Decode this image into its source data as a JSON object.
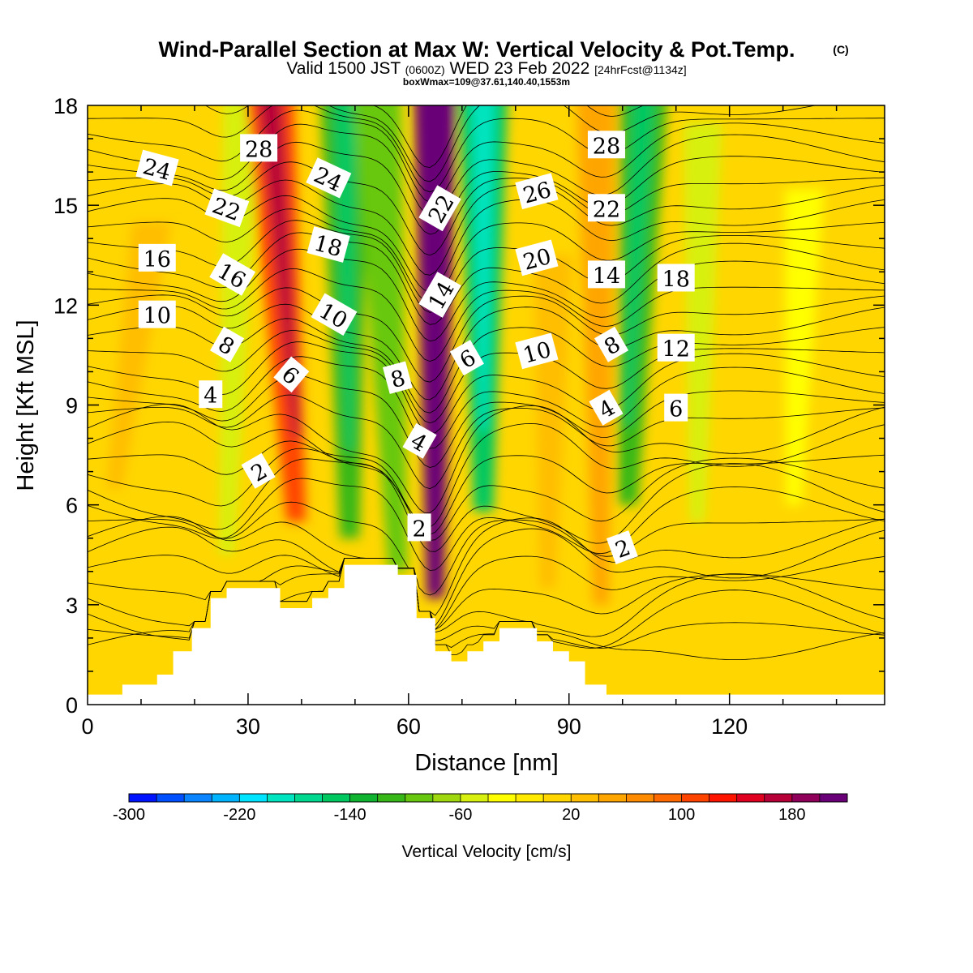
{
  "chart_data": {
    "type": "heatmap",
    "title": "Wind-Parallel Section at Max W: Vertical Velocity & Pot.Temp.",
    "title_mark": "(C)",
    "subtitle_parts": [
      "Valid 1500 JST ",
      "(0600Z)",
      " WED 23 Feb 2022 ",
      "[24hrFcst@1134z]"
    ],
    "subtitle2": "boxWmax=109@37.61,140.40,1553m",
    "xlabel": "Distance [nm]",
    "ylabel": "Height [Kft MSL]",
    "xlim": [
      0,
      149
    ],
    "ylim": [
      0,
      18
    ],
    "x_ticks": [
      0,
      30,
      60,
      90,
      120
    ],
    "y_ticks": [
      0,
      3,
      6,
      9,
      12,
      15,
      18
    ],
    "colorbar": {
      "title": "Vertical Velocity [cm/s]",
      "min": -300,
      "max": 220,
      "step": 20,
      "tick_labels": [
        -300,
        -220,
        -140,
        -60,
        20,
        100,
        180
      ],
      "colors": [
        "#0014ff",
        "#0050ff",
        "#0a84ff",
        "#00b4ff",
        "#00e4ff",
        "#00e4c0",
        "#00d890",
        "#00c860",
        "#10b430",
        "#38b818",
        "#68c810",
        "#a0d810",
        "#d8f010",
        "#ffff00",
        "#ffea00",
        "#ffd600",
        "#ffbe00",
        "#ffa500",
        "#ff8c00",
        "#ff6a00",
        "#ff4400",
        "#ff1400",
        "#e00020",
        "#b80038",
        "#90005a",
        "#6a0078"
      ]
    },
    "vertical_velocity_bands": [
      {
        "x_top": 12,
        "x_bottom": 5,
        "y_from": 6.5,
        "y_to": 14,
        "value": 30
      },
      {
        "x_top": 29,
        "x_bottom": 26,
        "y_from": 4.5,
        "y_to": 18,
        "value": -50
      },
      {
        "x_top": 34,
        "x_bottom": 39,
        "y_from": 5.5,
        "y_to": 18,
        "value": 100
      },
      {
        "x_top": 48,
        "x_bottom": 49,
        "y_from": 5,
        "y_to": 18,
        "value": -120
      },
      {
        "x_top": 54,
        "x_bottom": 58,
        "y_from": 4,
        "y_to": 18,
        "value": -90
      },
      {
        "x_top": 65,
        "x_bottom": 65,
        "y_from": 3.2,
        "y_to": 18,
        "value": 200
      },
      {
        "x_top": 74,
        "x_bottom": 74,
        "y_from": 5.8,
        "y_to": 18,
        "value": -150
      },
      {
        "x_top": 87,
        "x_bottom": 86,
        "y_from": 3.5,
        "y_to": 13,
        "value": 30
      },
      {
        "x_top": 95,
        "x_bottom": 96,
        "y_from": 3,
        "y_to": 18,
        "value": 50
      },
      {
        "x_top": 104,
        "x_bottom": 101,
        "y_from": 6,
        "y_to": 18,
        "value": -120
      },
      {
        "x_top": 115,
        "x_bottom": 114,
        "y_from": 5.5,
        "y_to": 17,
        "value": -50
      },
      {
        "x_top": 134,
        "x_bottom": 132,
        "y_from": 6,
        "y_to": 15,
        "value": -40
      }
    ],
    "terrain": [
      [
        0,
        0.3
      ],
      [
        6.5,
        0.3
      ],
      [
        6.5,
        0.6
      ],
      [
        13,
        0.6
      ],
      [
        13,
        0.9
      ],
      [
        16,
        0.9
      ],
      [
        16,
        1.6
      ],
      [
        19.5,
        1.6
      ],
      [
        19.5,
        2.3
      ],
      [
        23,
        2.3
      ],
      [
        23,
        3.2
      ],
      [
        26,
        3.2
      ],
      [
        26,
        3.5
      ],
      [
        36,
        3.5
      ],
      [
        36,
        2.9
      ],
      [
        42,
        2.9
      ],
      [
        42,
        3.2
      ],
      [
        45,
        3.2
      ],
      [
        45,
        3.5
      ],
      [
        48,
        3.5
      ],
      [
        48,
        4.2
      ],
      [
        58,
        4.2
      ],
      [
        58,
        3.9
      ],
      [
        61.5,
        3.9
      ],
      [
        61.5,
        2.6
      ],
      [
        65,
        2.6
      ],
      [
        65,
        1.6
      ],
      [
        68,
        1.6
      ],
      [
        68,
        1.3
      ],
      [
        71,
        1.3
      ],
      [
        71,
        1.6
      ],
      [
        74,
        1.6
      ],
      [
        74,
        1.9
      ],
      [
        77,
        1.9
      ],
      [
        77,
        2.3
      ],
      [
        84,
        2.3
      ],
      [
        84,
        1.9
      ],
      [
        87,
        1.9
      ],
      [
        87,
        1.6
      ],
      [
        90,
        1.6
      ],
      [
        90,
        1.3
      ],
      [
        93,
        1.3
      ],
      [
        93,
        0.6
      ],
      [
        97,
        0.6
      ],
      [
        97,
        0.3
      ],
      [
        149,
        0.3
      ]
    ],
    "theta_contours": {
      "interval": 0.5,
      "labeled": [
        {
          "text": "2",
          "x": 32,
          "y": 7.0,
          "angle": -30
        },
        {
          "text": "4",
          "x": 23,
          "y": 9.3,
          "angle": 0
        },
        {
          "text": "6",
          "x": 38,
          "y": 9.9,
          "angle": 40
        },
        {
          "text": "8",
          "x": 26,
          "y": 10.8,
          "angle": 30
        },
        {
          "text": "10",
          "x": 13,
          "y": 11.7,
          "angle": 0
        },
        {
          "text": "16",
          "x": 13,
          "y": 13.4,
          "angle": 0
        },
        {
          "text": "16",
          "x": 27,
          "y": 12.9,
          "angle": 30
        },
        {
          "text": "22",
          "x": 26,
          "y": 14.9,
          "angle": 20
        },
        {
          "text": "24",
          "x": 13,
          "y": 16.1,
          "angle": 15
        },
        {
          "text": "28",
          "x": 32,
          "y": 16.7,
          "angle": 0
        },
        {
          "text": "24",
          "x": 45,
          "y": 15.8,
          "angle": 25
        },
        {
          "text": "18",
          "x": 45,
          "y": 13.8,
          "angle": 15
        },
        {
          "text": "10",
          "x": 46,
          "y": 11.7,
          "angle": 30
        },
        {
          "text": "8",
          "x": 58,
          "y": 9.8,
          "angle": -15
        },
        {
          "text": "4",
          "x": 62,
          "y": 7.9,
          "angle": 30
        },
        {
          "text": "2",
          "x": 62,
          "y": 5.3,
          "angle": 0
        },
        {
          "text": "22",
          "x": 66,
          "y": 14.9,
          "angle": -60
        },
        {
          "text": "14",
          "x": 66,
          "y": 12.3,
          "angle": -60
        },
        {
          "text": "6",
          "x": 71,
          "y": 10.4,
          "angle": -30
        },
        {
          "text": "26",
          "x": 84,
          "y": 15.4,
          "angle": -15
        },
        {
          "text": "20",
          "x": 84,
          "y": 13.4,
          "angle": -15
        },
        {
          "text": "10",
          "x": 84,
          "y": 10.6,
          "angle": -15
        },
        {
          "text": "28",
          "x": 97,
          "y": 16.8,
          "angle": 0
        },
        {
          "text": "22",
          "x": 97,
          "y": 14.9,
          "angle": 0
        },
        {
          "text": "14",
          "x": 97,
          "y": 12.9,
          "angle": 0
        },
        {
          "text": "8",
          "x": 98,
          "y": 10.8,
          "angle": -30
        },
        {
          "text": "4",
          "x": 97,
          "y": 8.9,
          "angle": -30
        },
        {
          "text": "2",
          "x": 100,
          "y": 4.7,
          "angle": -20
        },
        {
          "text": "18",
          "x": 110,
          "y": 12.8,
          "angle": 0
        },
        {
          "text": "12",
          "x": 110,
          "y": 10.7,
          "angle": 0
        },
        {
          "text": "6",
          "x": 110,
          "y": 8.9,
          "angle": 0
        }
      ]
    }
  }
}
